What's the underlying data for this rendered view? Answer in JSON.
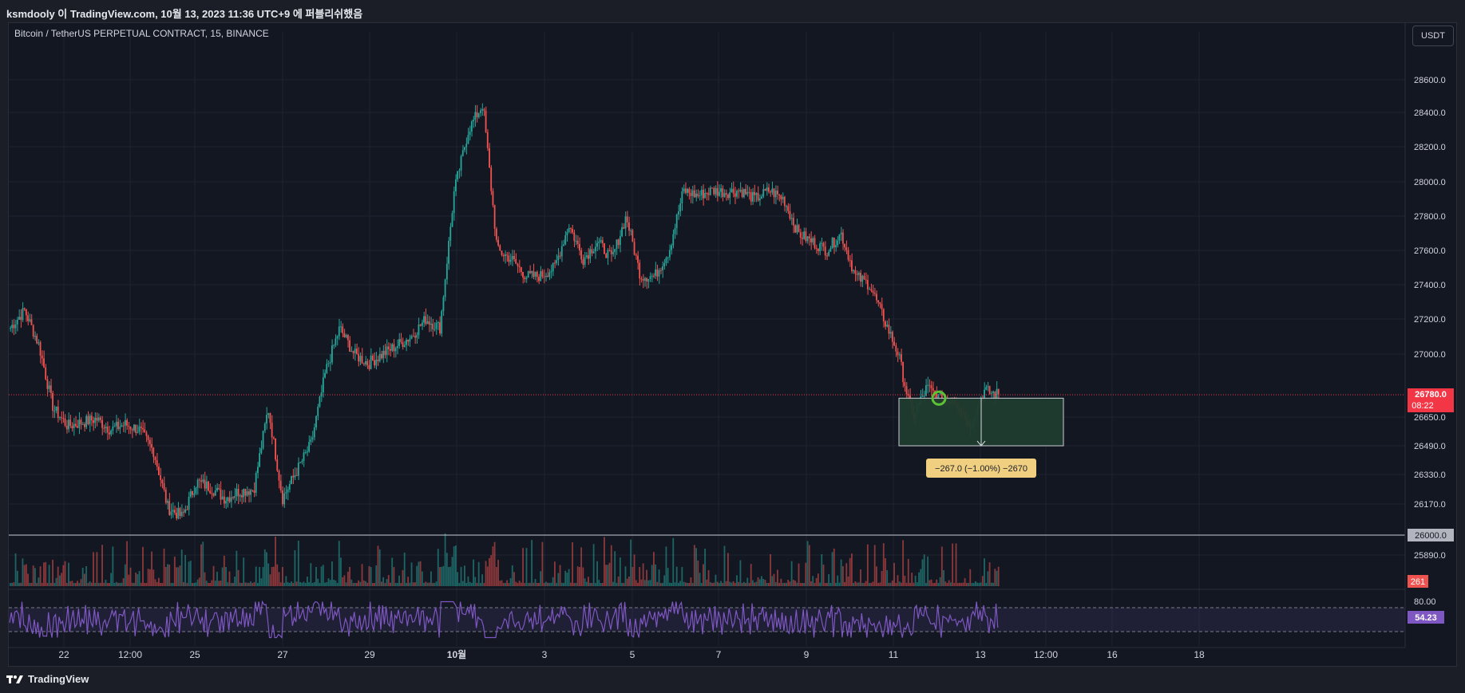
{
  "header": {
    "capture_text": "ksmdooly 이 TradingView.com, 10월 13, 2023 11:36 UTC+9 에 퍼블리쉬했음"
  },
  "symbol": {
    "title": "Bitcoin / TetherUS PERPETUAL CONTRACT, 15, BINANCE"
  },
  "currency_button": "USDT",
  "brand": "TradingView",
  "colors": {
    "background": "#131722",
    "up": "#26a69a",
    "down": "#ef5350",
    "rsi": "#7e57c2",
    "price_label": "#f23645",
    "measure_fill": "#1f3b2e",
    "measure_label": "#f0d080"
  },
  "chart_data": {
    "type": "candlestick",
    "interval": "15",
    "exchange": "BINANCE",
    "price_axis_ticks": [
      "28600.0",
      "28400.0",
      "28200.0",
      "28000.0",
      "27800.0",
      "27600.0",
      "27400.0",
      "27200.0",
      "27000.0",
      "26650.0",
      "26490.0",
      "26330.0",
      "26170.0",
      "25890.0"
    ],
    "time_axis_ticks": [
      "22",
      "12:00",
      "25",
      "27",
      "29",
      "10월",
      "3",
      "5",
      "7",
      "9",
      "11",
      "13",
      "12:00",
      "16",
      "18"
    ],
    "close_path": [
      [
        "Sep 21",
        27150
      ],
      [
        "Sep 21",
        27250
      ],
      [
        "Sep 21",
        27050
      ],
      [
        "Sep 21",
        26700
      ],
      [
        "Sep 22",
        26600
      ],
      [
        "Sep 22",
        26620
      ],
      [
        "Sep 22",
        26640
      ],
      [
        "Sep 23",
        26580
      ],
      [
        "Sep 24",
        26610
      ],
      [
        "Sep 24",
        26580
      ],
      [
        "Sep 25",
        26460
      ],
      [
        "Sep 25",
        26150
      ],
      [
        "Sep 26",
        26100
      ],
      [
        "Sep 26",
        26290
      ],
      [
        "Sep 26",
        26260
      ],
      [
        "Sep 27",
        26200
      ],
      [
        "Sep 27",
        26240
      ],
      [
        "Sep 28",
        26250
      ],
      [
        "Sep 28",
        26700
      ],
      [
        "Sep 28",
        26200
      ],
      [
        "Sep 28",
        26350
      ],
      [
        "Sep 29",
        26500
      ],
      [
        "Sep 29",
        26900
      ],
      [
        "Sep 29",
        27150
      ],
      [
        "Sep 30",
        27000
      ],
      [
        "Sep 30",
        26950
      ],
      [
        "Oct 1",
        27000
      ],
      [
        "Oct 1",
        27050
      ],
      [
        "Oct 1",
        27100
      ],
      [
        "Oct 2",
        27200
      ],
      [
        "Oct 2",
        27150
      ],
      [
        "Oct 2",
        27950
      ],
      [
        "Oct 2",
        28300
      ],
      [
        "Oct 3",
        28450
      ],
      [
        "Oct 3",
        27600
      ],
      [
        "Oct 3",
        27550
      ],
      [
        "Oct 4",
        27450
      ],
      [
        "Oct 4",
        27450
      ],
      [
        "Oct 5",
        27500
      ],
      [
        "Oct 5",
        27750
      ],
      [
        "Oct 5",
        27550
      ],
      [
        "Oct 6",
        27650
      ],
      [
        "Oct 6",
        27550
      ],
      [
        "Oct 6",
        27800
      ],
      [
        "Oct 6",
        27450
      ],
      [
        "Oct 7",
        27450
      ],
      [
        "Oct 7",
        27600
      ],
      [
        "Oct 7",
        27950
      ],
      [
        "Oct 7",
        27920
      ],
      [
        "Oct 8",
        27950
      ],
      [
        "Oct 8",
        27940
      ],
      [
        "Oct 8",
        27950
      ],
      [
        "Oct 9",
        27900
      ],
      [
        "Oct 9",
        27950
      ],
      [
        "Oct 9",
        27900
      ],
      [
        "Oct 9",
        27700
      ],
      [
        "Oct 10",
        27650
      ],
      [
        "Oct 10",
        27600
      ],
      [
        "Oct 10",
        27700
      ],
      [
        "Oct 11",
        27450
      ],
      [
        "Oct 11",
        27400
      ],
      [
        "Oct 11",
        27200
      ],
      [
        "Oct 11",
        27000
      ],
      [
        "Oct 12",
        26650
      ],
      [
        "Oct 12",
        26820
      ],
      [
        "Oct 12",
        26750
      ],
      [
        "Oct 13",
        26750
      ],
      [
        "Oct 13",
        26600
      ],
      [
        "Oct 13",
        26800
      ],
      [
        "Oct 13",
        26780
      ]
    ],
    "last_price": {
      "value": "26780.0",
      "countdown": "08:22"
    },
    "horizontal_line": {
      "price": 26000.0,
      "label": "26000.0"
    },
    "price_range_measure": {
      "from": 26760,
      "to": 26490,
      "label": "−267.0 (−1.00%) −2670"
    },
    "volume": {
      "last_label": "261"
    },
    "rsi": {
      "last": "54.23",
      "upper_label": "80.00",
      "upper_band": 70,
      "lower_band": 30
    }
  }
}
